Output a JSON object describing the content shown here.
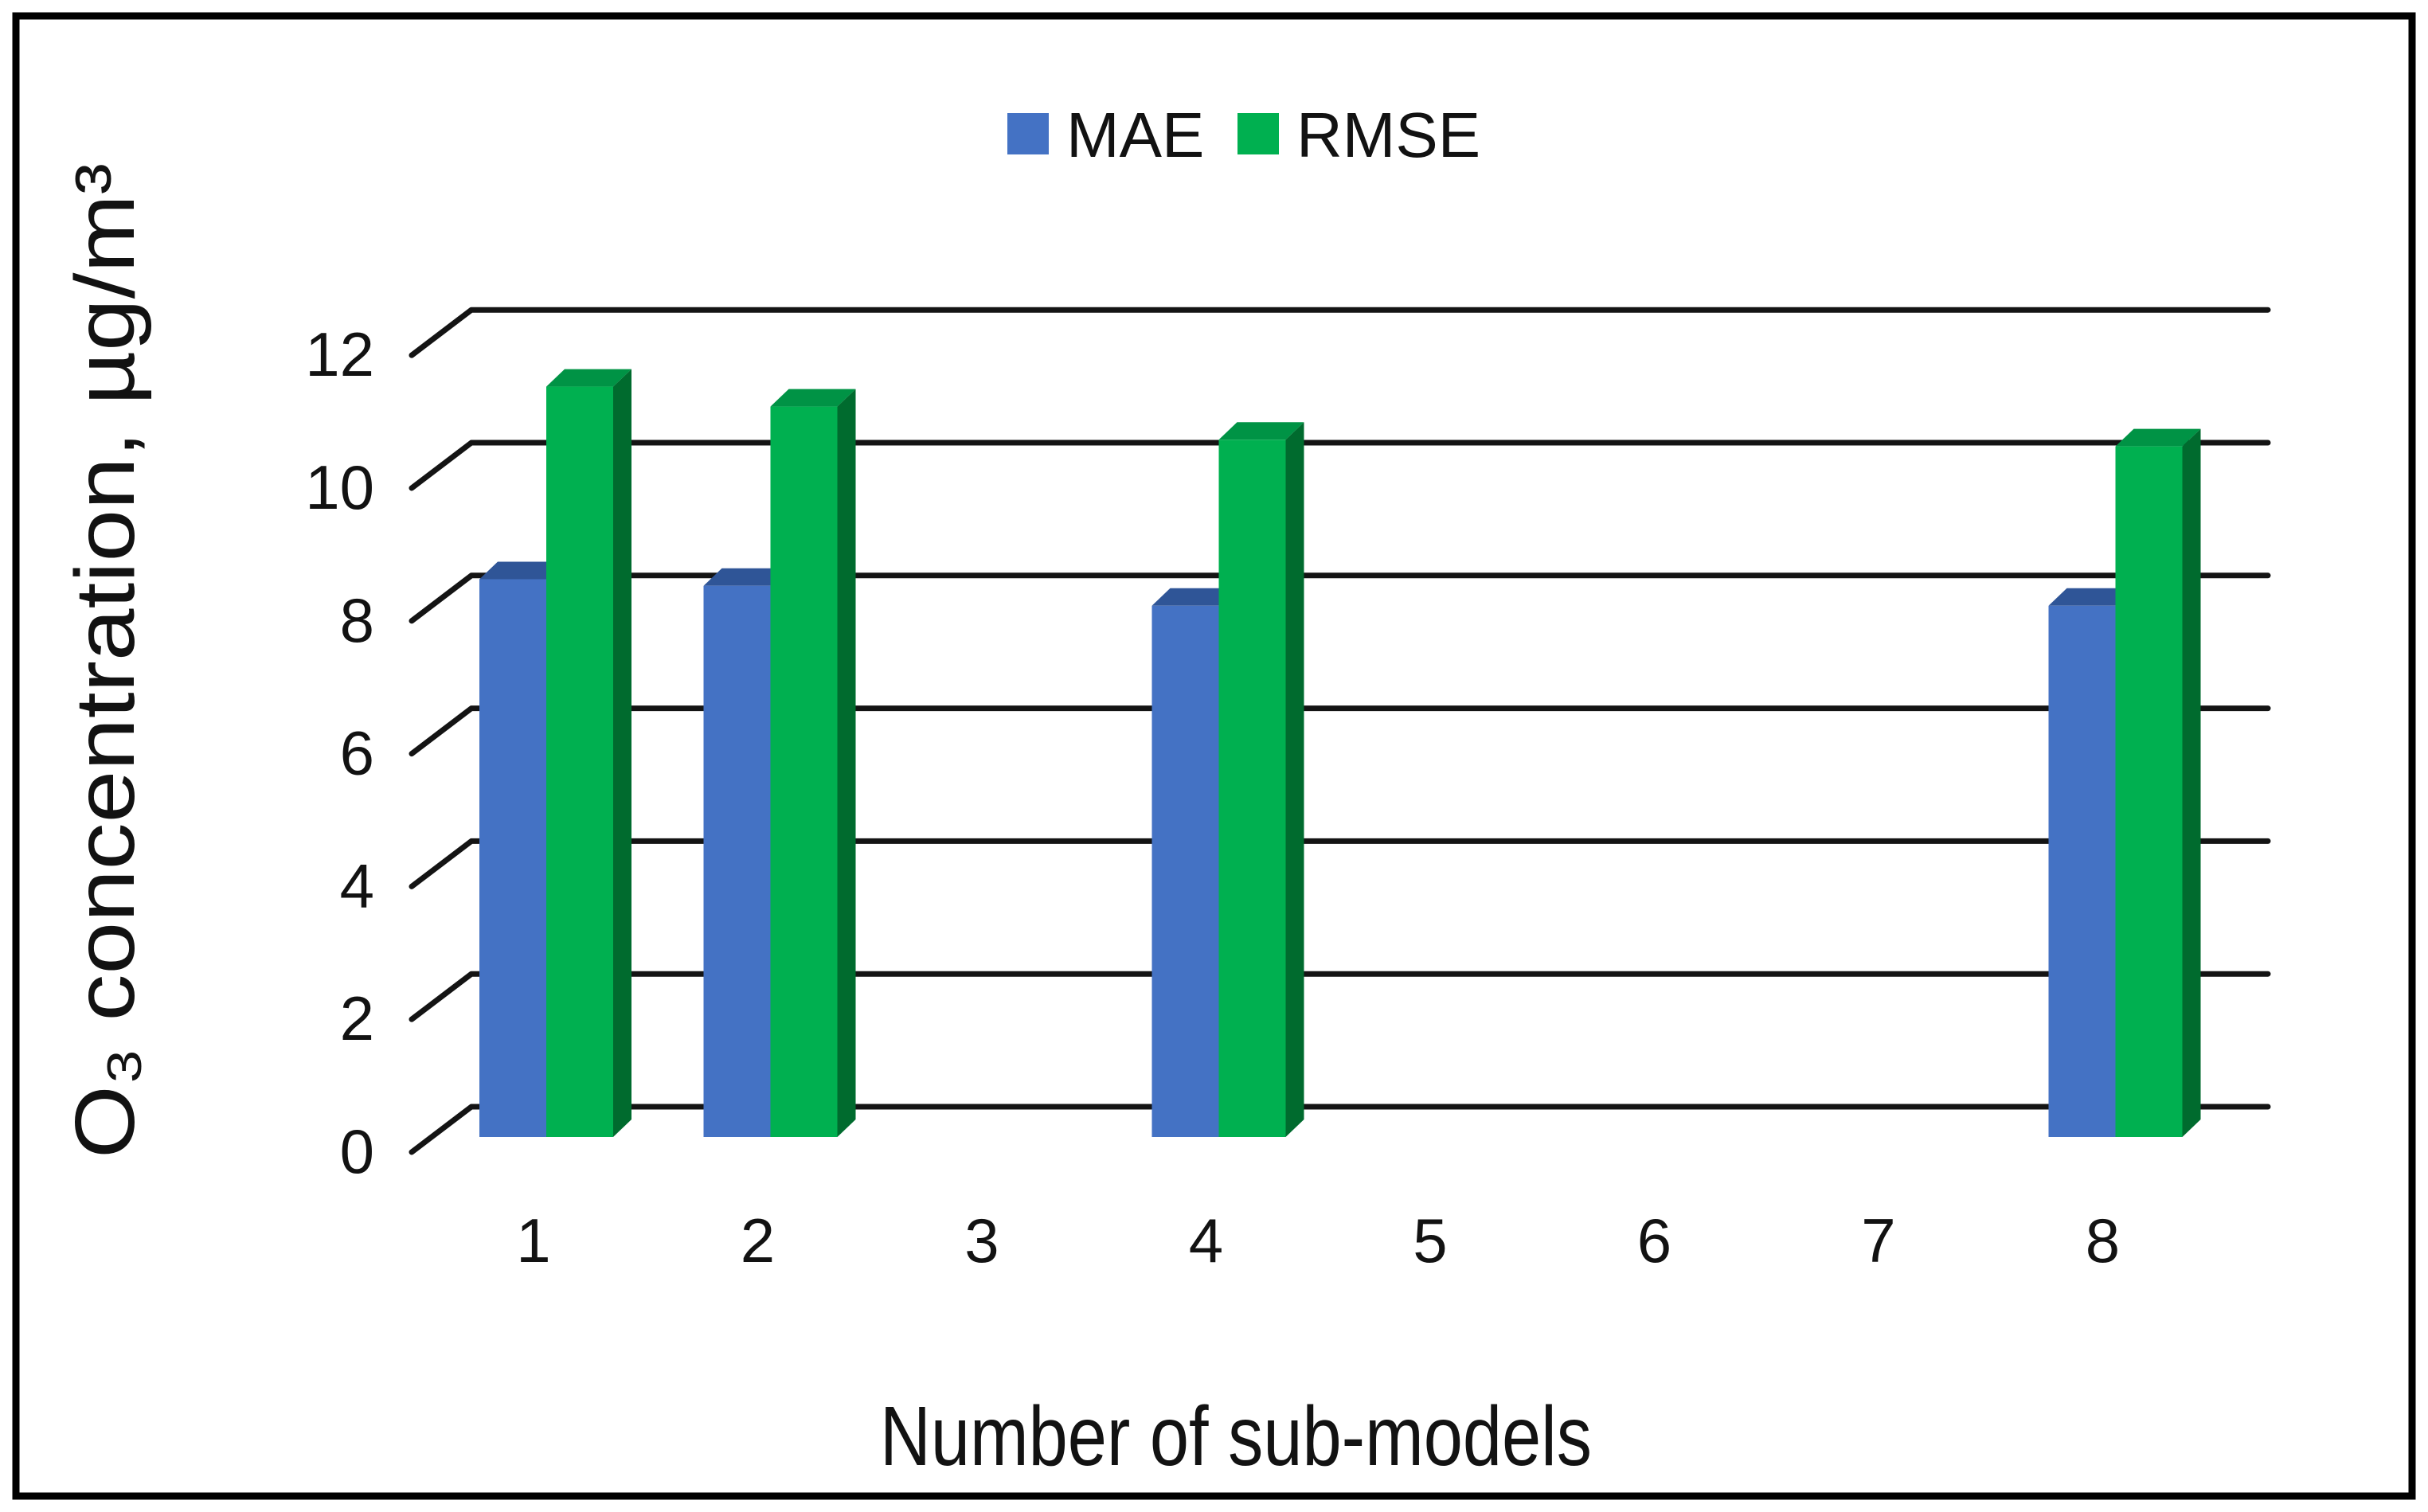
{
  "figure": {
    "background": "#ffffff",
    "border_color": "#000000",
    "gridline_color": "#141414",
    "text_color": "#121212"
  },
  "legend": {
    "position": "top-center",
    "items": [
      {
        "label": "MAE",
        "swatch_color": "#4472C4"
      },
      {
        "label": "RMSE",
        "swatch_color": "#00B050"
      }
    ]
  },
  "chart_data": {
    "type": "bar",
    "style": "3d-clustered-column",
    "categories": [
      "1",
      "2",
      "3",
      "4",
      "5",
      "6",
      "7",
      "8"
    ],
    "series": [
      {
        "name": "MAE",
        "color": "#4472C4",
        "top_color": "#2F5597",
        "side_color": "#24437A",
        "values": [
          8.4,
          8.3,
          null,
          8.0,
          null,
          null,
          null,
          8.0
        ]
      },
      {
        "name": "RMSE",
        "color": "#00B050",
        "top_color": "#009345",
        "side_color": "#006B2E",
        "values": [
          11.3,
          11.0,
          null,
          10.5,
          null,
          null,
          null,
          10.4
        ]
      }
    ],
    "title": "",
    "xlabel": "Number of sub-models",
    "ylabel": "O₃ concentration, µg/m³",
    "y_ticks": [
      0,
      2,
      4,
      6,
      8,
      10,
      12
    ],
    "ylim": [
      0,
      12
    ],
    "grid": true,
    "legend_position": "top"
  }
}
